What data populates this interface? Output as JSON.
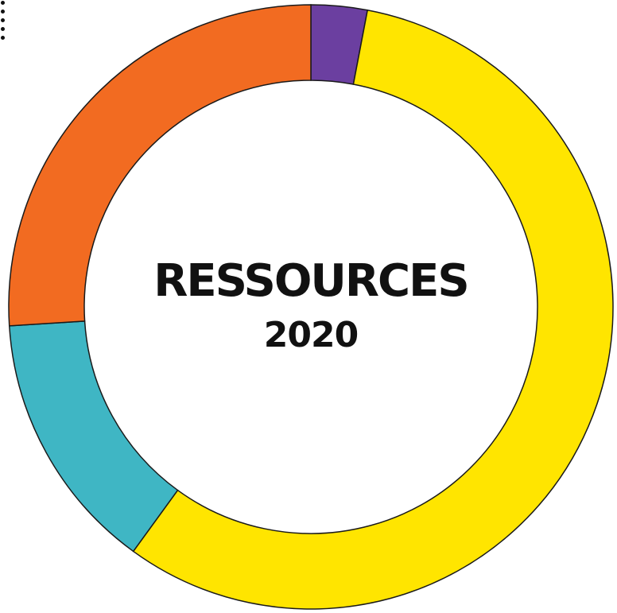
{
  "chart_data": {
    "type": "pie",
    "variant": "donut",
    "center_title": "RESSOURCES",
    "center_subtitle": "2020",
    "start_angle_deg": 0,
    "direction": "clockwise",
    "slices": [
      {
        "value": 3.0,
        "color": "#6B3FA0"
      },
      {
        "value": 57.0,
        "color": "#FFE500"
      },
      {
        "value": 14.0,
        "color": "#3FB6C4"
      },
      {
        "value": 26.0,
        "color": "#F26B21"
      }
    ],
    "outline_color": "#1a1a1a"
  }
}
